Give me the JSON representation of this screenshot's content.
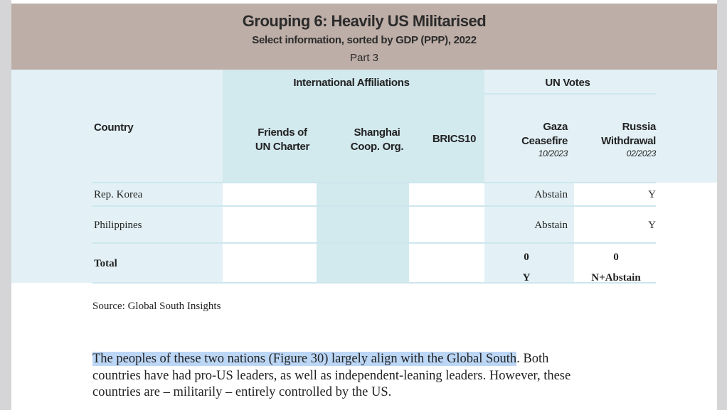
{
  "header": {
    "title": "Grouping 6: Heavily US Militarised",
    "subtitle": "Select information, sorted by GDP (PPP), 2022",
    "part": "Part 3"
  },
  "table": {
    "group_affiliations": "International Affiliations",
    "group_votes": "UN Votes",
    "columns": {
      "country": "Country",
      "friends": [
        "Friends of",
        "UN Charter"
      ],
      "shanghai": [
        "Shanghai",
        "Coop. Org."
      ],
      "brics": "BRICS10",
      "gaza": [
        "Gaza",
        "Ceasefire",
        "10/2023"
      ],
      "russia": [
        "Russia",
        "Withdrawal",
        "02/2023"
      ]
    },
    "rows": [
      {
        "country": "Rep. Korea",
        "friends": "",
        "shanghai": "",
        "brics": "",
        "gaza": "Abstain",
        "russia": "Y"
      },
      {
        "country": "Philippines",
        "friends": "",
        "shanghai": "",
        "brics": "",
        "gaza": "Abstain",
        "russia": "Y"
      }
    ],
    "total": {
      "label": "Total",
      "gaza": [
        "0",
        "Y"
      ],
      "russia": [
        "0",
        "N+Abstain"
      ]
    }
  },
  "source": "Source: Global South Insights",
  "paragraph": {
    "highlighted": "The peoples of these two nations (Figure 30) largely align with the Global South",
    "rest_line1": ". Both",
    "line2": "countries have had pro-US leaders, as well as independent-leaning leaders. However, these",
    "line3": "countries are – militarily – entirely controlled by the US."
  }
}
